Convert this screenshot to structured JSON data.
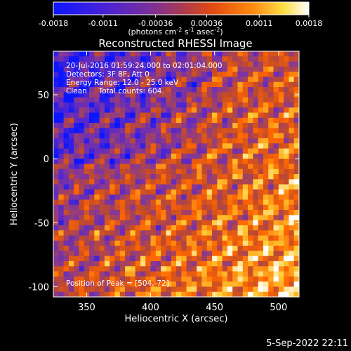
{
  "chart_data": {
    "type": "heatmap",
    "title": "Reconstructed RHESSI Image",
    "xlabel": "Heliocentric X (arcsec)",
    "ylabel": "Heliocentric Y (arcsec)",
    "xlim": [
      324,
      516
    ],
    "ylim": [
      -108,
      84
    ],
    "x_ticks": [
      350,
      400,
      450,
      500
    ],
    "y_ticks": [
      -100,
      -50,
      0,
      50
    ],
    "colorbar": {
      "ticks": [
        -0.0018,
        -0.0011,
        -0.00036,
        0.00036,
        0.0011,
        0.0018
      ],
      "tick_labels": [
        "-0.0018",
        "-0.0011",
        "-0.00036",
        "0.00036",
        "0.0011",
        "0.0018"
      ],
      "range": [
        -0.0018,
        0.0018
      ],
      "units_label": "(photons cm-2 s-1 asec-2)",
      "colormap": [
        "#0b16ff",
        "#5b28c8",
        "#8a3a8e",
        "#c24a2a",
        "#ff6600",
        "#ffcc33",
        "#ffffff"
      ]
    },
    "annotations": [
      "20-Jul-2016 01:59:24.000 to 02:01:04.000",
      "Detectors: 3F 8F, Att 0",
      "Energy Range: 12.0 - 25.0 keV",
      "Clean     Total counts: 604.",
      "Position of Peak = [504,-72]"
    ],
    "peak_position": [
      504,
      -72
    ],
    "description_of_field": "fringe-like lattice of blobs; bluish-violet low values at top-left, orange-yellow high values at bottom-right"
  },
  "footer": {
    "timestamp": "5-Sep-2022 22:11"
  }
}
